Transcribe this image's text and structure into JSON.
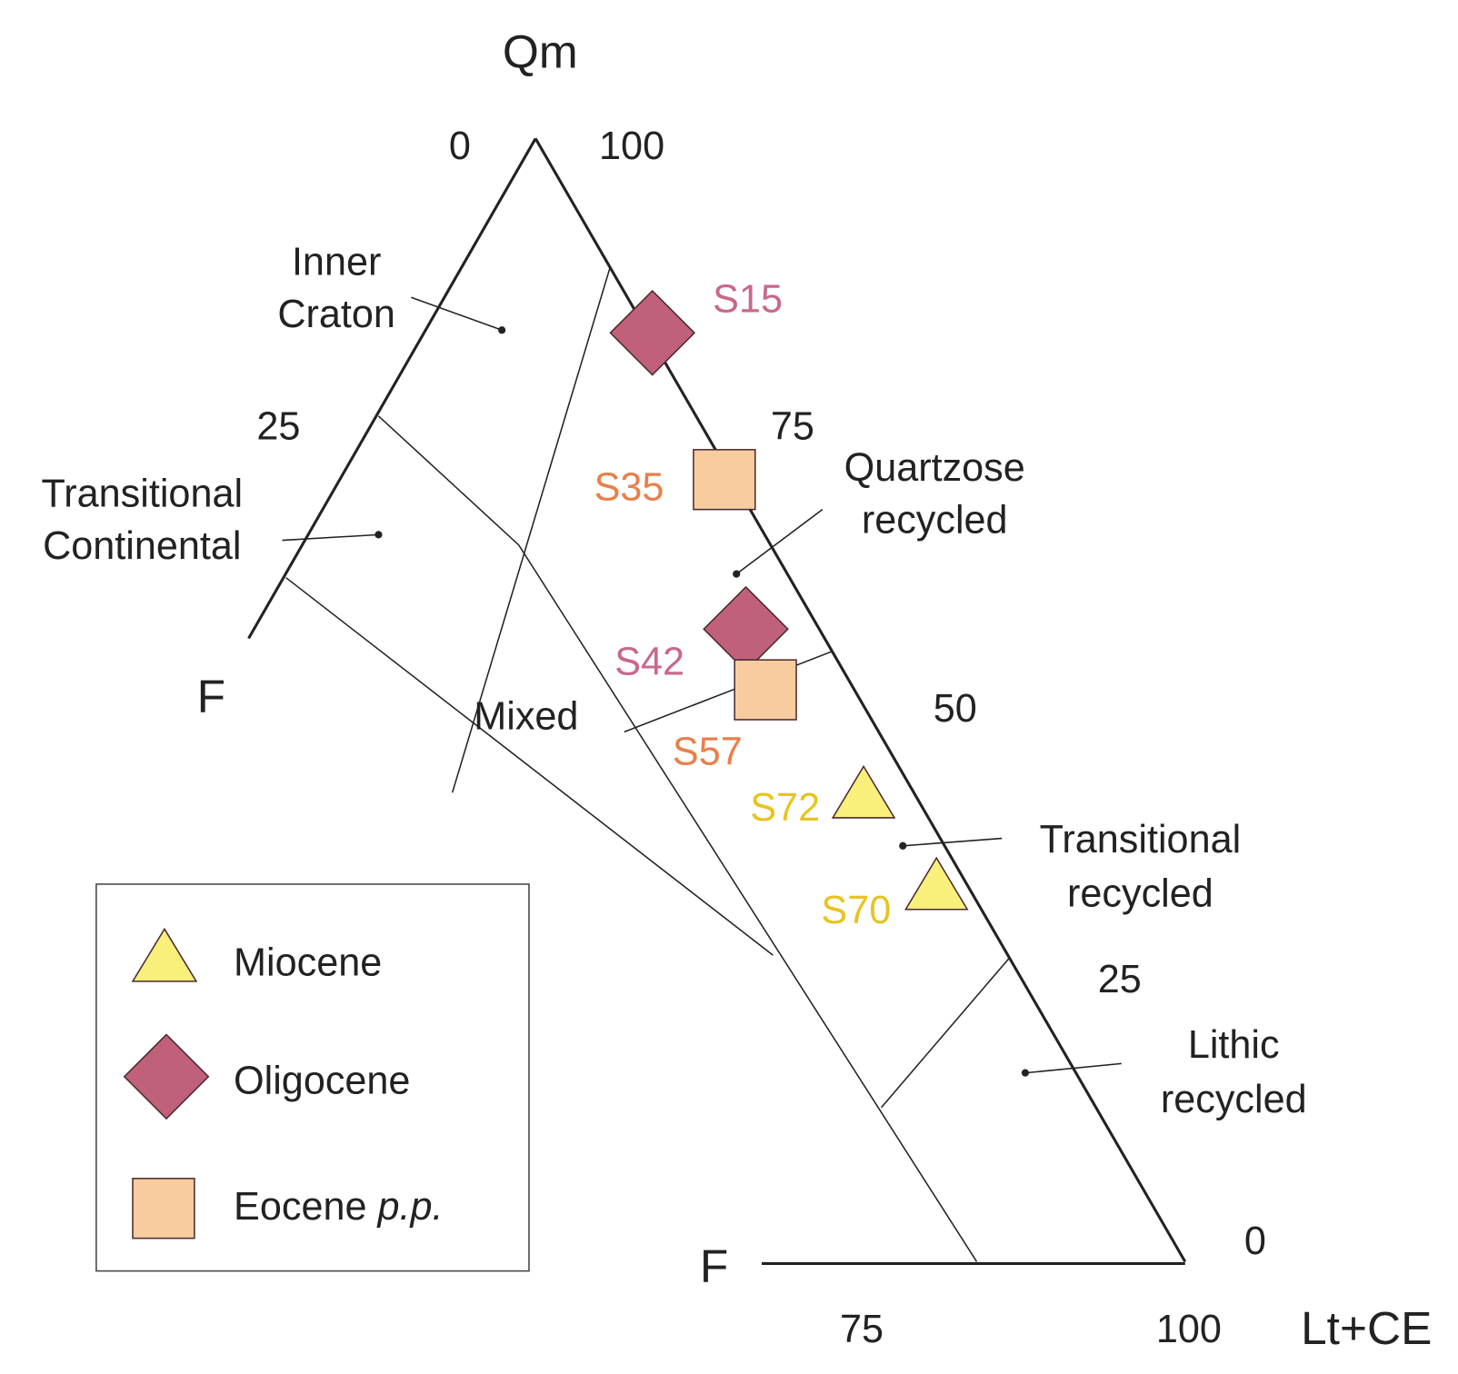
{
  "apices": {
    "top": "Qm",
    "left": "F",
    "bottom_left": "F",
    "right": "Lt+CE"
  },
  "scale_labels": {
    "left_top": "0",
    "left_mid": "25",
    "right_top": "100",
    "right_75": "75",
    "right_50": "50",
    "right_25": "25",
    "right_0": "0",
    "bottom_75": "75",
    "bottom_100": "100"
  },
  "fields": [
    {
      "lines": [
        "Inner",
        "Craton"
      ]
    },
    {
      "lines": [
        "Transitional",
        "Continental"
      ]
    },
    {
      "lines": [
        "Quartzose",
        "recycled"
      ]
    },
    {
      "lines": [
        "Mixed"
      ]
    },
    {
      "lines": [
        "Transitional",
        "recycled"
      ]
    },
    {
      "lines": [
        "Lithic",
        "recycled"
      ]
    }
  ],
  "samples": [
    "S15",
    "S35",
    "S42",
    "S57",
    "S72",
    "S70"
  ],
  "legend": [
    {
      "label": "Miocene"
    },
    {
      "label": "Oligocene"
    },
    {
      "label": "Eocene",
      "label_italic": "p.p."
    }
  ]
}
